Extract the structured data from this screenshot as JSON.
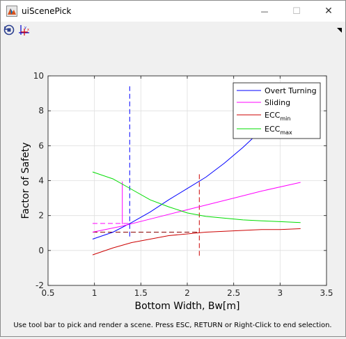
{
  "window": {
    "title": "uiScenePick",
    "icon": "matlab-figure-icon",
    "controls": {
      "minimize": "—",
      "maximize": "☐",
      "close": "✕"
    }
  },
  "toolbar": {
    "buttons": [
      {
        "name": "rotate-view-icon"
      },
      {
        "name": "data-cursor-icon"
      }
    ]
  },
  "status_text": "Use tool bar to pick and render a scene. Press ESC, RETURN or Right-Click to end selection.",
  "chart_data": {
    "type": "line",
    "xlabel": "Bottom Width, Bw[m]",
    "ylabel": "Factor of Safety",
    "xlim": [
      0.5,
      3.5
    ],
    "ylim": [
      -2,
      10
    ],
    "xticks": [
      0.5,
      1,
      1.5,
      2,
      2.5,
      3,
      3.5
    ],
    "xtick_labels": [
      "0.5",
      "1",
      "1.5",
      "2",
      "2.5",
      "3",
      "3.5"
    ],
    "yticks": [
      -2,
      0,
      2,
      4,
      6,
      8,
      10
    ],
    "ytick_labels": [
      "-2",
      "0",
      "2",
      "4",
      "6",
      "8",
      "10"
    ],
    "grid": true,
    "legend_position": "top-right",
    "series": [
      {
        "name": "Overt Turning",
        "color": "#0000ff",
        "style": "solid",
        "x": [
          0.98,
          1.2,
          1.4,
          1.6,
          1.8,
          2.0,
          2.2,
          2.4,
          2.6,
          2.8,
          3.0,
          3.22
        ],
        "y": [
          0.65,
          1.05,
          1.6,
          2.2,
          2.9,
          3.55,
          4.2,
          5.0,
          5.9,
          6.9,
          7.9,
          9.0
        ]
      },
      {
        "name": "Sliding",
        "color": "#ff00ff",
        "style": "solid",
        "x": [
          0.98,
          1.3,
          1.6,
          1.9,
          2.2,
          2.5,
          2.8,
          3.22
        ],
        "y": [
          1.05,
          1.4,
          1.8,
          2.2,
          2.6,
          3.0,
          3.4,
          3.9
        ]
      },
      {
        "name": "ECC",
        "sub": "min",
        "color": "#cc0000",
        "style": "solid",
        "x": [
          0.98,
          1.2,
          1.4,
          1.6,
          1.8,
          2.0,
          2.2,
          2.4,
          2.6,
          2.8,
          3.0,
          3.22
        ],
        "y": [
          -0.25,
          0.15,
          0.45,
          0.65,
          0.85,
          0.95,
          1.05,
          1.1,
          1.15,
          1.2,
          1.2,
          1.25
        ]
      },
      {
        "name": "ECC",
        "sub": "max",
        "color": "#00dd00",
        "style": "solid",
        "x": [
          0.98,
          1.2,
          1.4,
          1.6,
          1.8,
          2.0,
          2.2,
          2.4,
          2.6,
          2.8,
          3.0,
          3.22
        ],
        "y": [
          4.5,
          4.1,
          3.5,
          2.9,
          2.5,
          2.15,
          1.95,
          1.85,
          1.75,
          1.7,
          1.65,
          1.6
        ]
      }
    ],
    "annotations": [
      {
        "name": "blue-vertical-dashed",
        "color": "#0000ff",
        "style": "dashed",
        "x": [
          1.38,
          1.38
        ],
        "y": [
          0.8,
          9.4
        ]
      },
      {
        "name": "red-vertical-dashed",
        "color": "#cc0000",
        "style": "dashed",
        "x": [
          2.13,
          2.13
        ],
        "y": [
          -0.3,
          4.5
        ]
      },
      {
        "name": "red-horizontal-dashed",
        "color": "#880000",
        "style": "dashed",
        "x": [
          0.98,
          2.13
        ],
        "y": [
          1.05,
          1.05
        ]
      },
      {
        "name": "magenta-horizontal-dashed",
        "color": "#ff00ff",
        "style": "dashed",
        "x": [
          0.98,
          1.38
        ],
        "y": [
          1.55,
          1.55
        ]
      },
      {
        "name": "magenta-vertical-solid",
        "color": "#ff00ff",
        "style": "solid",
        "x": [
          1.3,
          1.3
        ],
        "y": [
          1.5,
          3.95
        ]
      }
    ]
  }
}
